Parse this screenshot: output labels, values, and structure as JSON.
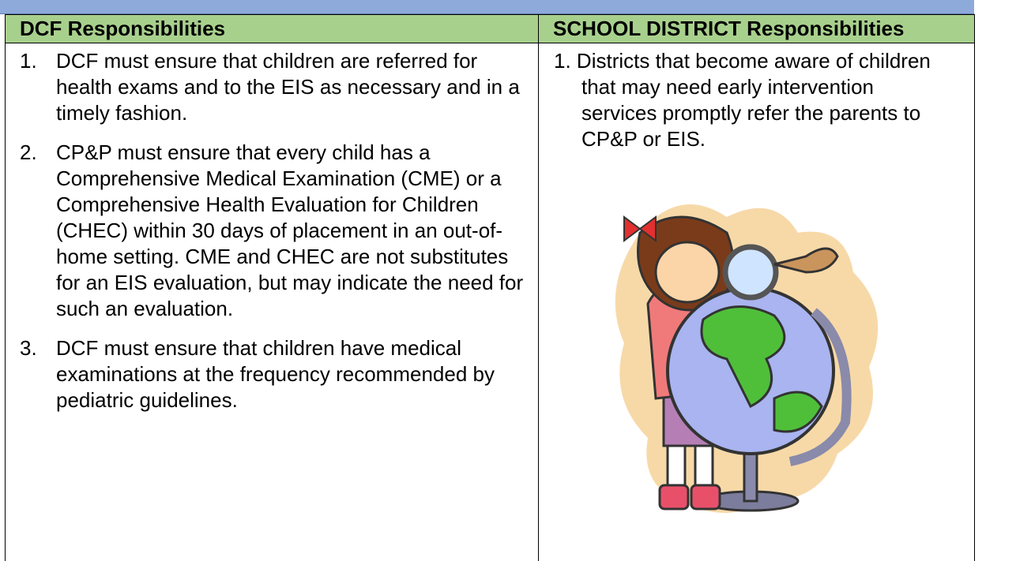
{
  "table": {
    "columns": [
      {
        "header": "DCF Responsibilities",
        "items": [
          {
            "number": "1.",
            "text": "DCF must ensure that children are referred for health exams and to the EIS as necessary and in a timely fashion."
          },
          {
            "number": "2.",
            "text": "CP&P must ensure that every child has a Comprehensive Medical Examination (CME) or a Comprehensive Health Evaluation for Children (CHEC) within 30 days of placement in an out-of-home setting. CME and CHEC are not substitutes for an EIS evaluation, but may indicate the need for such an evaluation."
          },
          {
            "number": "3.",
            "text": "DCF must ensure that children have medical examinations at the frequency recommended by pediatric guidelines."
          }
        ]
      },
      {
        "header": "SCHOOL DISTRICT Responsibilities",
        "items": [
          {
            "number": "1.",
            "text": "Districts that become aware of children that may need early intervention services promptly refer the parents to CP&P or EIS."
          }
        ]
      }
    ]
  }
}
